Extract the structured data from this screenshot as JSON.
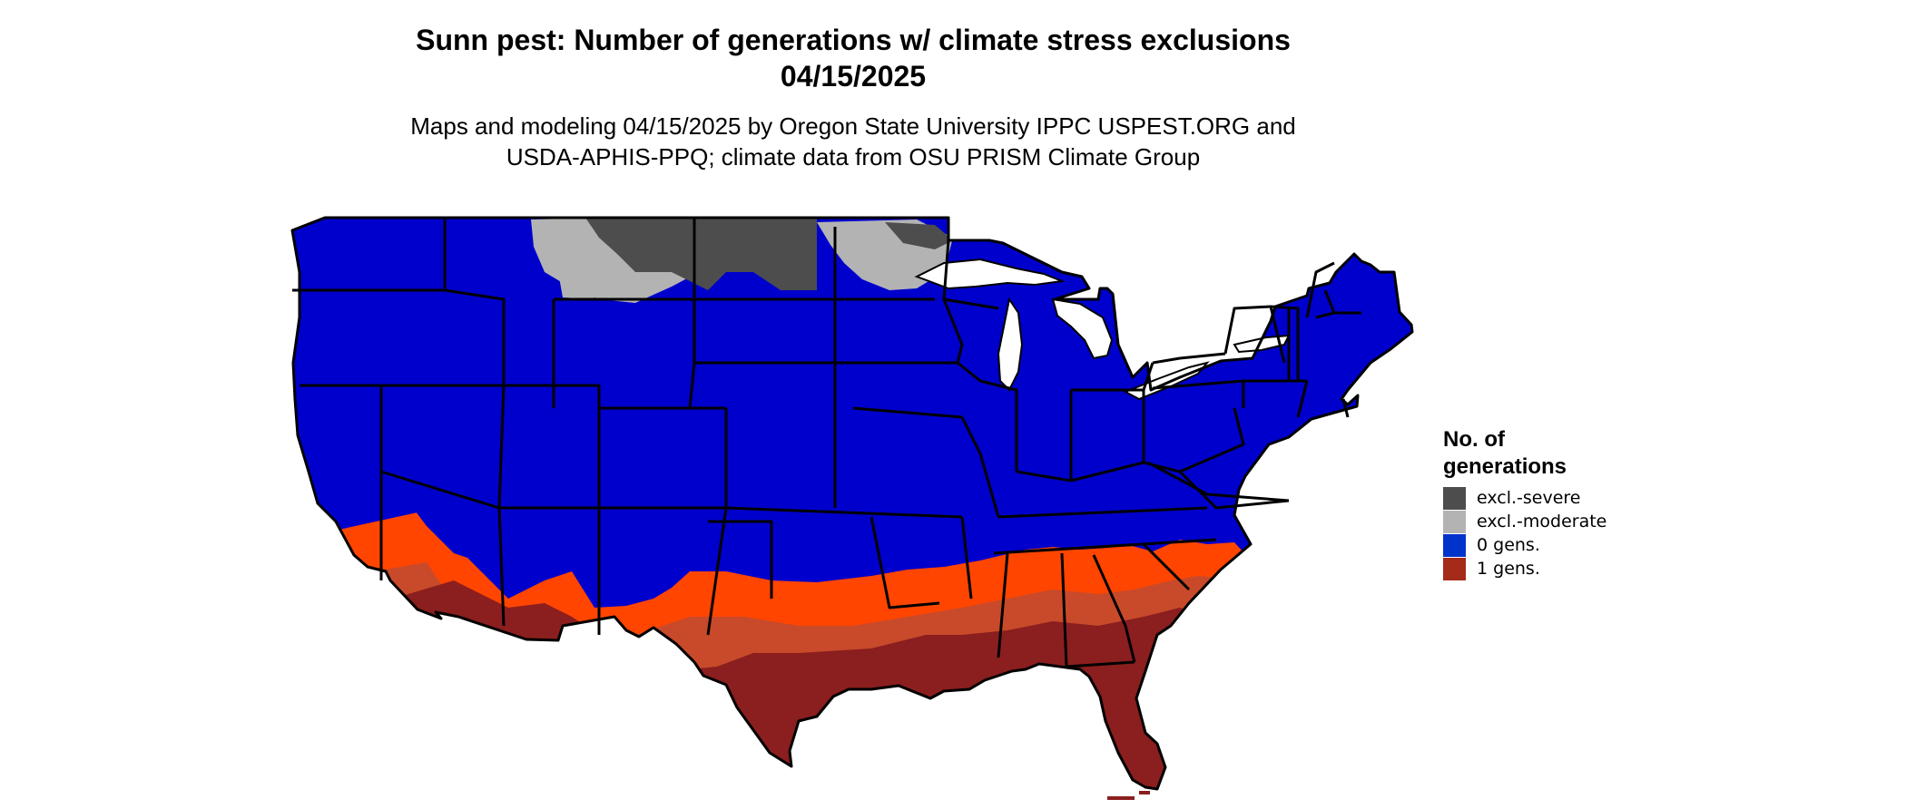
{
  "title": {
    "line1": "Sunn pest: Number of generations w/ climate stress exclusions",
    "line2": "04/15/2025"
  },
  "subtitle": {
    "line1": "Maps and modeling 04/15/2025 by Oregon State University IPPC USPEST.ORG and",
    "line2": "USDA-APHIS-PPQ; climate data from OSU PRISM Climate Group"
  },
  "legend": {
    "title_line1": "No. of",
    "title_line2": "generations",
    "items": [
      {
        "label": "excl.-severe",
        "color": "#4d4d4d"
      },
      {
        "label": "excl.-moderate",
        "color": "#b3b3b3"
      },
      {
        "label": "0 gens.",
        "color": "#0033cc"
      },
      {
        "label": "1 gens.",
        "color": "#a52a1a"
      }
    ]
  },
  "map_colors": {
    "zero_gens": "#0000cc",
    "severe": "#4d4d4d",
    "moderate": "#b3b3b3",
    "one_gens_light": "#ff4500",
    "one_gens_mid": "#c8401f",
    "one_gens_dark": "#8b1e1e",
    "border": "#000000"
  }
}
